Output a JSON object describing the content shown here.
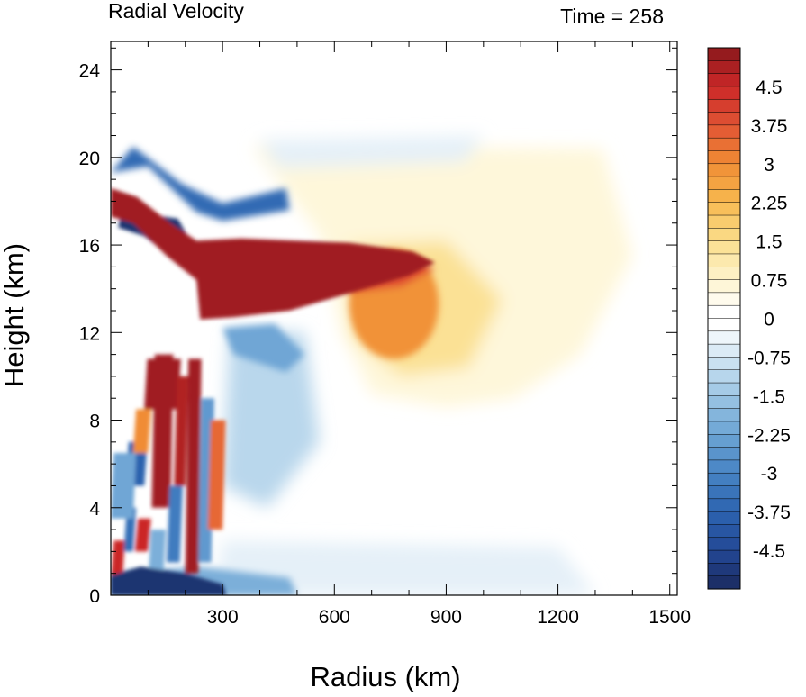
{
  "chart_data": {
    "type": "heatmap",
    "title": "Radial Velocity",
    "time_label": "Time = 258",
    "xlabel": "Radius (km)",
    "ylabel": "Height (km)",
    "xlim": [
      0,
      1520
    ],
    "ylim": [
      0,
      25.3
    ],
    "x_ticks": [
      300,
      600,
      900,
      1200,
      1500
    ],
    "y_ticks": [
      0,
      4,
      8,
      12,
      16,
      20,
      24
    ],
    "colorbar": {
      "vmin": -5.25,
      "vmax": 5.25,
      "step": 0.25,
      "tick_values": [
        4.5,
        3.75,
        3,
        2.25,
        1.5,
        0.75,
        0,
        -0.75,
        -1.5,
        -2.25,
        -3,
        -3.75,
        -4.5
      ],
      "tick_labels": [
        "4.5",
        "3.75",
        "3",
        "2.25",
        "1.5",
        "0.75",
        "0",
        "-0.75",
        "-1.5",
        "-2.25",
        "-3",
        "-3.75",
        "-4.5"
      ],
      "colormap": "blue-white-red diverging"
    },
    "features": [
      {
        "kind": "outflow_core",
        "x": [
          0,
          860
        ],
        "y": [
          12.5,
          18.6
        ],
        "value": 5
      },
      {
        "kind": "outflow_plume",
        "x": [
          650,
          1050
        ],
        "y": [
          9.5,
          16
        ],
        "value": 2.5
      },
      {
        "kind": "upper_inflow",
        "x": [
          0,
          500
        ],
        "y": [
          15,
          20.5
        ],
        "value": -4.5
      },
      {
        "kind": "mid_inflow",
        "x": [
          300,
          550
        ],
        "y": [
          4,
          12
        ],
        "value": -1.5
      },
      {
        "kind": "lower_eyewall_bands",
        "x": [
          0,
          300
        ],
        "y": [
          0,
          11
        ],
        "value": 5
      },
      {
        "kind": "surface_inflow",
        "x": [
          0,
          320
        ],
        "y": [
          0,
          1.2
        ],
        "value": -5
      }
    ]
  }
}
